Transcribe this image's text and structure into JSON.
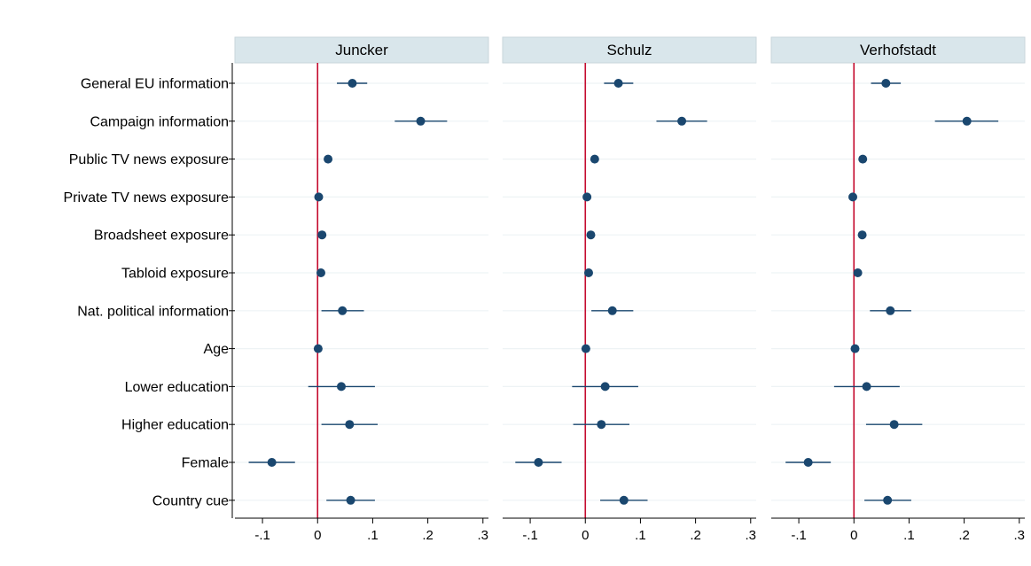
{
  "chart_data": {
    "type": "scatter",
    "subtype": "coefficient-plot",
    "title": "",
    "xlabel": "",
    "ylabel": "",
    "xlim": [
      -0.15,
      0.31
    ],
    "xticks": [
      -0.1,
      0,
      0.1,
      0.2,
      0.3
    ],
    "xtick_labels": [
      "-.1",
      "0",
      ".1",
      ".2",
      ".3"
    ],
    "reference_line_x": 0,
    "reference_line_color": "#c40b2e",
    "marker_color": "#1a476f",
    "strip_color": "#d9e6eb",
    "grid": true,
    "categories": [
      "General EU information",
      "Campaign information",
      "Public TV news exposure",
      "Private TV news exposure",
      "Broadsheet exposure",
      "Tabloid exposure",
      "Nat. political information",
      "Age",
      "Lower education",
      "Higher education",
      "Female",
      "Country cue"
    ],
    "panels": [
      {
        "name": "Juncker",
        "estimates": [
          0.063,
          0.187,
          0.019,
          0.002,
          0.008,
          0.006,
          0.045,
          0.001,
          0.043,
          0.058,
          -0.083,
          0.06
        ],
        "ci_low": [
          0.035,
          0.14,
          0.013,
          -0.004,
          0.001,
          0.0,
          0.007,
          -0.002,
          -0.017,
          0.007,
          -0.125,
          0.016
        ],
        "ci_high": [
          0.09,
          0.235,
          0.025,
          0.008,
          0.015,
          0.012,
          0.084,
          0.004,
          0.104,
          0.109,
          -0.041,
          0.104
        ]
      },
      {
        "name": "Schulz",
        "estimates": [
          0.06,
          0.175,
          0.017,
          0.003,
          0.01,
          0.006,
          0.049,
          0.001,
          0.036,
          0.029,
          -0.085,
          0.07
        ],
        "ci_low": [
          0.034,
          0.129,
          0.011,
          -0.003,
          0.003,
          0.0,
          0.011,
          -0.002,
          -0.024,
          -0.022,
          -0.127,
          0.027
        ],
        "ci_high": [
          0.087,
          0.221,
          0.023,
          0.009,
          0.017,
          0.012,
          0.087,
          0.004,
          0.096,
          0.08,
          -0.043,
          0.113
        ]
      },
      {
        "name": "Verhofstadt",
        "estimates": [
          0.058,
          0.205,
          0.016,
          -0.002,
          0.015,
          0.007,
          0.066,
          0.002,
          0.023,
          0.073,
          -0.083,
          0.061
        ],
        "ci_low": [
          0.031,
          0.147,
          0.01,
          -0.008,
          0.008,
          0.001,
          0.029,
          -0.001,
          -0.036,
          0.022,
          -0.124,
          0.019
        ],
        "ci_high": [
          0.085,
          0.262,
          0.022,
          0.004,
          0.022,
          0.013,
          0.104,
          0.005,
          0.083,
          0.124,
          -0.042,
          0.104
        ]
      }
    ]
  }
}
